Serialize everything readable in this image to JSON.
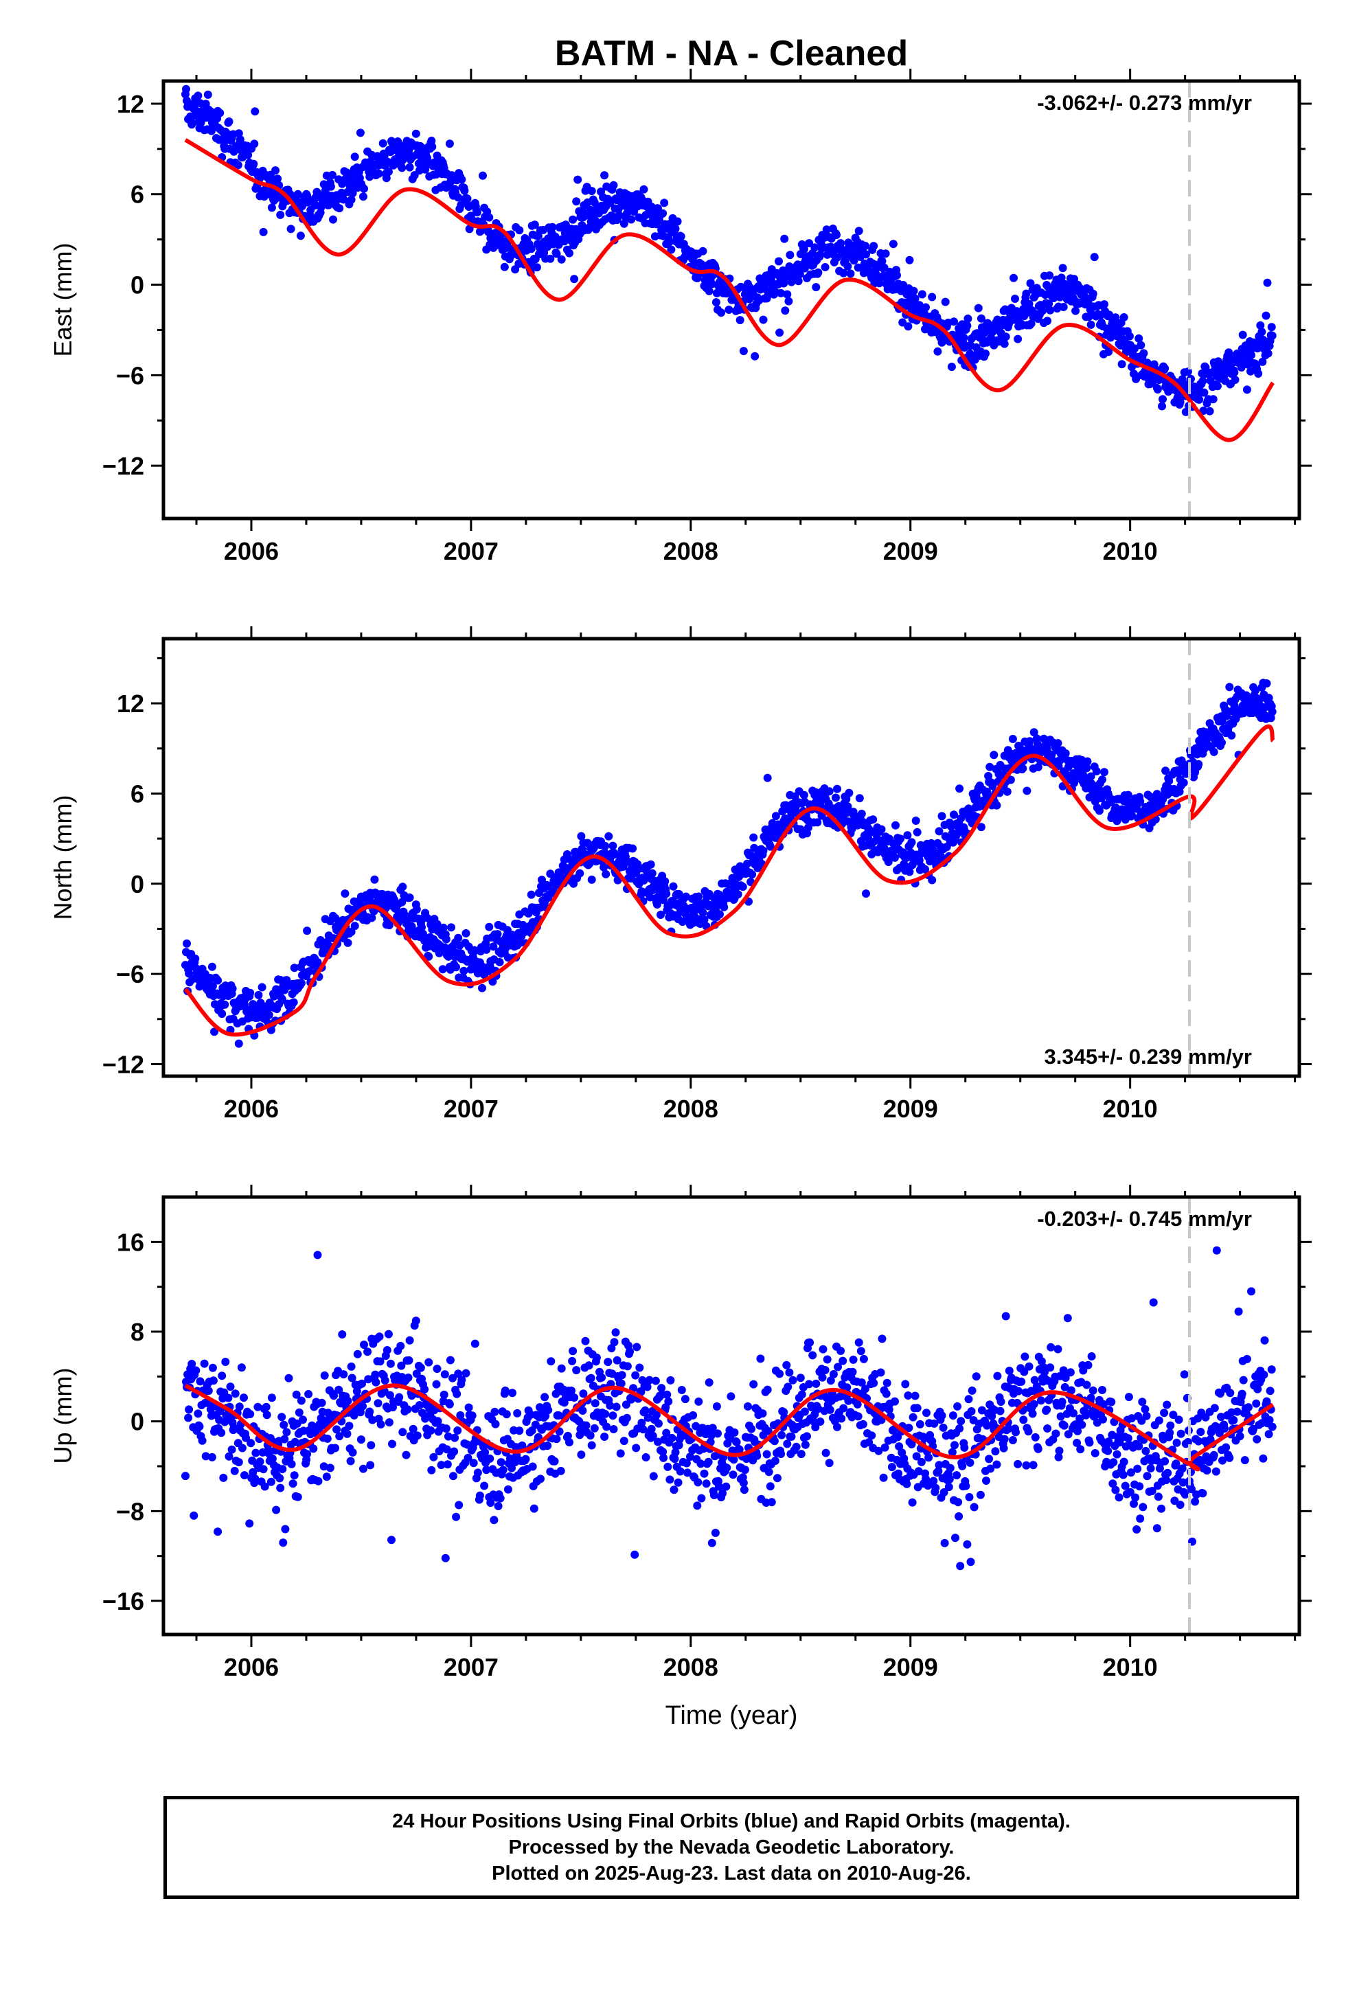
{
  "chart_data": {
    "type": "scatter",
    "title": "BATM  - NA - Cleaned",
    "xlabel": "Time (year)",
    "x_range": [
      2005.6,
      2010.77
    ],
    "x_ticks": [
      "2006",
      "2007",
      "2008",
      "2009",
      "2010"
    ],
    "equipment_change_year": 2010.27,
    "colors": {
      "data_points": "#0000ff",
      "model_fit": "#ff0000",
      "event_line": "#c8c8c8"
    },
    "panels": [
      {
        "name": "East",
        "ylabel": "East (mm)",
        "ylim": [
          -15.5,
          13.5
        ],
        "y_ticks": [
          "12",
          "6",
          "0",
          "-6",
          "-12"
        ],
        "y_tick_values": [
          12,
          6,
          0,
          -6,
          -12
        ],
        "velocity_label": "-3.062+/- 0.273 mm/yr",
        "velocity_label_position": "top-right",
        "trend": {
          "intercept": 9.8,
          "slope": -3.062,
          "amp": 2.4,
          "phase": 2005.47,
          "offset": -0.5,
          "noise": 1.0
        },
        "fit": [
          [
            2005.7,
            9.6
          ],
          [
            2006.0,
            7.0
          ],
          [
            2006.15,
            6.0
          ],
          [
            2006.4,
            2.0
          ],
          [
            2006.7,
            6.3
          ],
          [
            2007.0,
            4.0
          ],
          [
            2007.15,
            3.5
          ],
          [
            2007.4,
            -1.0
          ],
          [
            2007.7,
            3.3
          ],
          [
            2008.0,
            1.0
          ],
          [
            2008.15,
            0.5
          ],
          [
            2008.4,
            -4.0
          ],
          [
            2008.7,
            0.3
          ],
          [
            2009.0,
            -2.0
          ],
          [
            2009.15,
            -3.0
          ],
          [
            2009.4,
            -7.0
          ],
          [
            2009.7,
            -2.7
          ],
          [
            2010.0,
            -5.0
          ],
          [
            2010.2,
            -6.5
          ],
          [
            2010.45,
            -10.3
          ],
          [
            2010.65,
            -6.5
          ]
        ]
      },
      {
        "name": "North",
        "ylabel": "North (mm)",
        "ylim": [
          -12.8,
          16.3
        ],
        "y_ticks": [
          "12",
          "6",
          "0",
          "-6",
          "-12"
        ],
        "y_tick_values": [
          12,
          6,
          0,
          -6,
          -12
        ],
        "velocity_label": "3.345+/- 0.239 mm/yr",
        "velocity_label_position": "bottom-right",
        "trend": {
          "intercept": -8.5,
          "slope": 3.345,
          "amp": 2.7,
          "phase": 2005.3,
          "offset": 1.6,
          "noise": 1.0
        },
        "fit": [
          [
            2005.7,
            -7.0
          ],
          [
            2005.9,
            -10.0
          ],
          [
            2006.2,
            -8.5
          ],
          [
            2006.3,
            -6.0
          ],
          [
            2006.55,
            -1.5
          ],
          [
            2006.9,
            -6.5
          ],
          [
            2007.2,
            -5.0
          ],
          [
            2007.55,
            1.8
          ],
          [
            2007.9,
            -3.3
          ],
          [
            2008.2,
            -1.8
          ],
          [
            2008.55,
            5.0
          ],
          [
            2008.9,
            0.2
          ],
          [
            2009.2,
            2.0
          ],
          [
            2009.55,
            8.5
          ],
          [
            2009.9,
            3.7
          ],
          [
            2010.27,
            5.8
          ],
          [
            2010.29,
            4.5
          ],
          [
            2010.6,
            10.2
          ],
          [
            2010.65,
            9.5
          ]
        ]
      },
      {
        "name": "Up",
        "ylabel": "Up (mm)",
        "ylim": [
          -19,
          20
        ],
        "y_ticks": [
          "16",
          "8",
          "0",
          "-8",
          "-16"
        ],
        "y_tick_values": [
          16,
          8,
          0,
          -8,
          -16
        ],
        "velocity_label": "-0.203+/- 0.745 mm/yr",
        "velocity_label_position": "top-right",
        "trend": {
          "intercept": 0.3,
          "slope": -0.203,
          "amp": 3.0,
          "phase": 2005.38,
          "offset": 0,
          "noise": 3.5
        },
        "fit": [
          [
            2005.7,
            3.2
          ],
          [
            2005.9,
            1.0
          ],
          [
            2006.2,
            -2.5
          ],
          [
            2006.65,
            3.2
          ],
          [
            2007.2,
            -2.7
          ],
          [
            2007.65,
            3.0
          ],
          [
            2008.2,
            -3.0
          ],
          [
            2008.65,
            2.8
          ],
          [
            2009.2,
            -3.2
          ],
          [
            2009.65,
            2.6
          ],
          [
            2010.27,
            -3.8
          ],
          [
            2010.29,
            -3.2
          ],
          [
            2010.65,
            1.5
          ]
        ]
      }
    ]
  },
  "footer": {
    "lines": [
      "24 Hour Positions Using Final Orbits (blue) and Rapid Orbits (magenta).",
      "Processed by the Nevada Geodetic Laboratory.",
      "Plotted on 2025-Aug-23. Last data on 2010-Aug-26."
    ]
  }
}
